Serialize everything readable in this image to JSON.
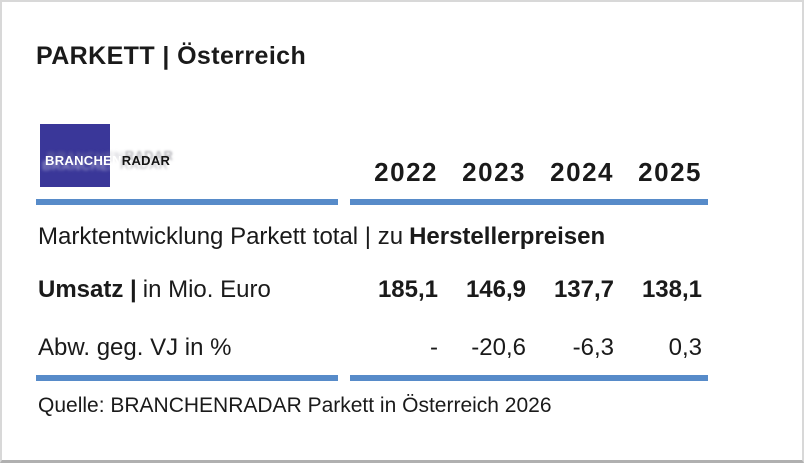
{
  "page": {
    "title": "PARKETT | Österreich",
    "logo": {
      "primary": "BRANCHEN",
      "secondary": "RADAR"
    },
    "table": {
      "years": [
        "2022",
        "2023",
        "2024",
        "2025"
      ],
      "section": {
        "prefix": "Marktentwicklung Parkett total | zu",
        "emphasis": "Herstellerpreisen"
      },
      "rows": [
        {
          "label_bold": "Umsatz |",
          "label_rest": "in Mio. Euro",
          "values": [
            "185,1",
            "146,9",
            "137,7",
            "138,1"
          ]
        },
        {
          "label_rest": "Abw. geg. VJ in %",
          "values": [
            "-",
            "-20,6",
            "-6,3",
            "0,3"
          ]
        }
      ]
    },
    "source": "Quelle: BRANCHENRADAR Parkett in Österreich 2026"
  },
  "colors": {
    "accent_line": "#578BC9",
    "logo_background": "#3A3799",
    "text": "#1A1A1A",
    "card_border": "#D8D8D8"
  },
  "chart_data": {
    "type": "table",
    "title": "PARKETT | Österreich",
    "subtitle": "Marktentwicklung Parkett total | zu Herstellerpreisen",
    "categories": [
      "2022",
      "2023",
      "2024",
      "2025"
    ],
    "series": [
      {
        "name": "Umsatz | in Mio. Euro",
        "values": [
          185.1,
          146.9,
          137.7,
          138.1
        ]
      },
      {
        "name": "Abw. geg. VJ in %",
        "values": [
          null,
          -20.6,
          -6.3,
          0.3
        ]
      }
    ],
    "source": "Quelle: BRANCHENRADAR Parkett in Österreich 2026",
    "legend_position": "none",
    "grid": false
  }
}
